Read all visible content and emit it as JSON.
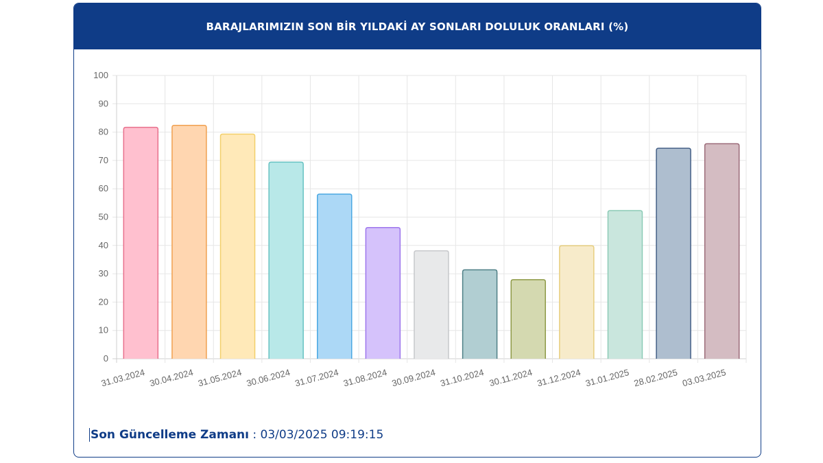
{
  "header": {
    "title": "BARAJLARIMIZIN SON BİR YILDAKİ AY SONLARI DOLULUK ORANLARI (%)"
  },
  "footer": {
    "label": "Son Güncelleme Zamanı",
    "separator": " : ",
    "value": "03/03/2025 09:19:15"
  },
  "chart_data": {
    "type": "bar",
    "title": "BARAJLARIMIZIN SON BİR YILDAKİ AY SONLARI DOLULUK ORANLARI (%)",
    "xlabel": "",
    "ylabel": "",
    "ylim": [
      0,
      100
    ],
    "yticks": [
      0,
      10,
      20,
      30,
      40,
      50,
      60,
      70,
      80,
      90,
      100
    ],
    "grid": true,
    "legend": "none",
    "categories": [
      "31.03.2024",
      "30.04.2024",
      "31.05.2024",
      "30.06.2024",
      "31.07.2024",
      "31.08.2024",
      "30.09.2024",
      "31.10.2024",
      "30.11.2024",
      "31.12.2024",
      "31.01.2025",
      "28.02.2025",
      "03.03.2025"
    ],
    "values": [
      81.7,
      82.4,
      79.3,
      69.4,
      58.1,
      46.3,
      38.1,
      31.4,
      27.9,
      39.9,
      52.3,
      74.3,
      75.9
    ],
    "colors": [
      {
        "fill": "#ffc0cf",
        "stroke": "#e8708c"
      },
      {
        "fill": "#ffd6b0",
        "stroke": "#f0a050"
      },
      {
        "fill": "#ffe9b8",
        "stroke": "#f2cf6a"
      },
      {
        "fill": "#b8e8e8",
        "stroke": "#66c2c2"
      },
      {
        "fill": "#acd8f6",
        "stroke": "#4aa8e2"
      },
      {
        "fill": "#d5c2fb",
        "stroke": "#9d75ec"
      },
      {
        "fill": "#e8e9ea",
        "stroke": "#c6c8cb"
      },
      {
        "fill": "#b1ced2",
        "stroke": "#4e7f86"
      },
      {
        "fill": "#d4d9b0",
        "stroke": "#8e9a47"
      },
      {
        "fill": "#f7ebca",
        "stroke": "#e7ce7e"
      },
      {
        "fill": "#c9e6dd",
        "stroke": "#8ccbb6"
      },
      {
        "fill": "#aebecf",
        "stroke": "#445f86"
      },
      {
        "fill": "#d4bcc2",
        "stroke": "#9b6a78"
      }
    ]
  }
}
